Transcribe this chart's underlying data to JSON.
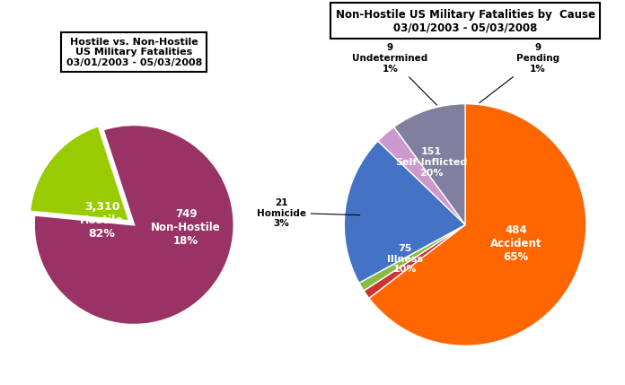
{
  "pie1_title": "Hostile vs. Non-Hostile\nUS Military Fatalities\n03/01/2003 - 05/03/2008",
  "pie1_values": [
    3310,
    749
  ],
  "pie1_labels": [
    "3,310\nHostile\n82%",
    "749\nNon-Hostile\n18%"
  ],
  "pie1_colors": [
    "#993366",
    "#99cc00"
  ],
  "pie1_explode": [
    0,
    0.06
  ],
  "pie1_startangle": 108,
  "pie2_title": "Non-Hostile US Military Fatalities by  Cause\n03/01/2003 - 05/03/2008",
  "pie2_values": [
    484,
    9,
    9,
    151,
    21,
    75
  ],
  "pie2_colors": [
    "#ff6600",
    "#cc3333",
    "#88bb44",
    "#4472c4",
    "#cc99cc",
    "#7f7f9f"
  ],
  "pie2_startangle": 90,
  "bg_color": "#ffffff"
}
